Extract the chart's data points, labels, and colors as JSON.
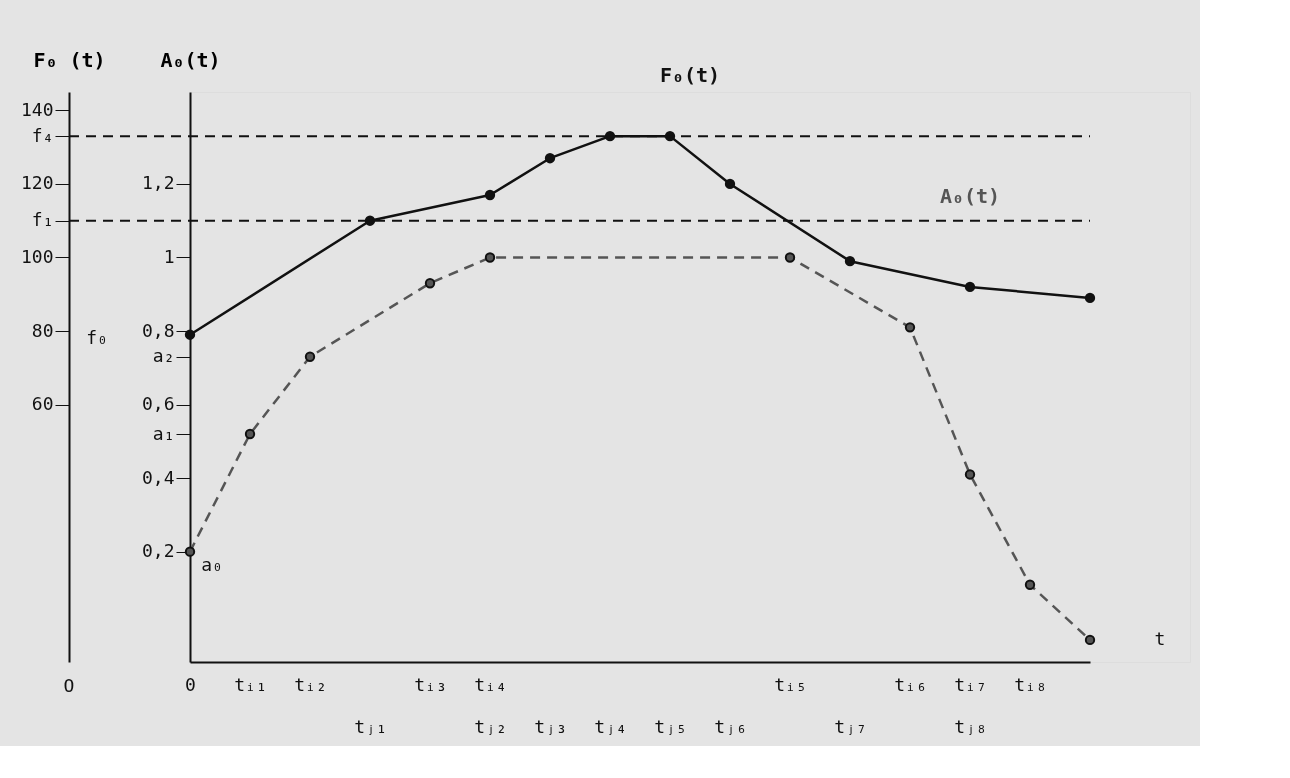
{
  "chart_data": {
    "type": "line",
    "xlabel": "t",
    "ylabel": "F₀ (t)",
    "y2label": "A₀(t)",
    "categories": [
      "0",
      "tᵢ₁",
      "tᵢ₂",
      "\ntⱼ₁",
      "tᵢ₃",
      "tᵢ₄\ntⱼ₂",
      "\ntⱼ₃",
      "\ntⱼ₄",
      "\ntⱼ₅",
      "\ntⱼ₆",
      "tᵢ₅",
      "\ntⱼ₇",
      "tᵢ₆",
      "tᵢ₇\ntⱼ₈",
      "tᵢ₈",
      null
    ],
    "series": [
      {
        "name": "F₀(t)",
        "color": "#111111",
        "line_style": "solid",
        "values": [
          79,
          null,
          null,
          110,
          null,
          117,
          127,
          133,
          133,
          120,
          null,
          99,
          null,
          92,
          null,
          89
        ]
      },
      {
        "name": "A₀(t)",
        "color": "#555555",
        "line_style": "dashed",
        "axis": "y2",
        "values": [
          0.2,
          0.52,
          0.73,
          null,
          0.93,
          1.0,
          null,
          null,
          null,
          null,
          1.0,
          null,
          0.81,
          0.41,
          0.11,
          -0.04
        ]
      }
    ],
    "marker": "circle",
    "ylim": [
      -10,
      145
    ],
    "yticks": [
      60,
      80,
      100,
      120,
      140,
      {
        "value": 133,
        "label": "f₄"
      },
      {
        "value": 110,
        "label": "f₁"
      }
    ],
    "y2lim": [
      -0.1,
      1.45
    ],
    "y2ticks": [
      {
        "value": 0.2,
        "label": "0,2"
      },
      {
        "value": 0.4,
        "label": "0,4"
      },
      {
        "value": 0.6,
        "label": "0,6"
      },
      {
        "value": 0.8,
        "label": "0,8"
      },
      {
        "value": 1,
        "label": "1"
      },
      {
        "value": 1.2,
        "label": "1,2"
      },
      {
        "value": 0.52,
        "label": "a₁"
      },
      {
        "value": 0.73,
        "label": "a₂"
      }
    ],
    "ref_lines": [
      {
        "axis": "y",
        "value": 133,
        "line_style": "dashed"
      },
      {
        "axis": "y",
        "value": 110,
        "line_style": "dashed"
      }
    ],
    "annotations": [
      "O",
      "f₀",
      "a₀"
    ]
  }
}
